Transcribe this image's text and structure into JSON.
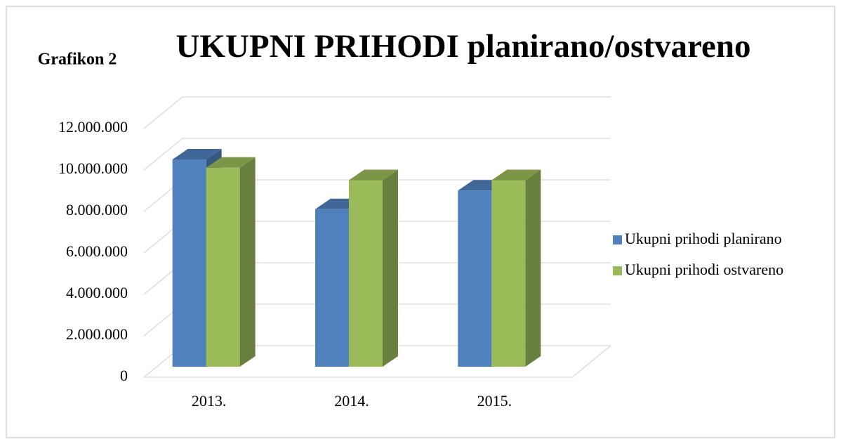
{
  "chart_data": {
    "type": "bar3d",
    "title": "UKUPNI PRIHODI planirano/ostvareno",
    "annotation": "Grafikon 2",
    "categories": [
      "2013.",
      "2014.",
      "2015."
    ],
    "series": [
      {
        "name": "Ukupni prihodi planirano",
        "color": "#4f81bd",
        "values": [
          10000000,
          7600000,
          8500000
        ]
      },
      {
        "name": "Ukupni prihodi ostvareno",
        "color": "#9bbb59",
        "values": [
          9600000,
          9000000,
          9000000
        ]
      }
    ],
    "ylim": [
      0,
      12000000
    ],
    "yticks": [
      0,
      {
        "value": 2000000,
        "label": "2.000.000"
      },
      {
        "value": 4000000,
        "label": "4.000.000"
      },
      {
        "value": 6000000,
        "label": "6.000.000"
      },
      {
        "value": 8000000,
        "label": "8.000.000"
      },
      {
        "value": 10000000,
        "label": "10.000.000"
      },
      {
        "value": 12000000,
        "label": "12.000.000"
      }
    ],
    "grid": true,
    "legend": "right"
  }
}
